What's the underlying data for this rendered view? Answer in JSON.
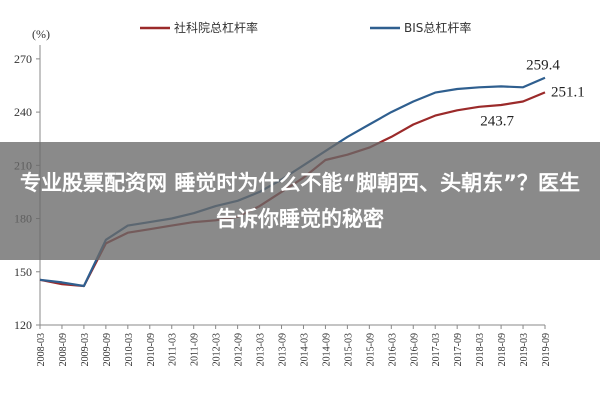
{
  "chart_data": {
    "type": "line",
    "yunit": "(%)",
    "ylim": [
      120,
      275
    ],
    "yticks": [
      120,
      150,
      180,
      210,
      240,
      270
    ],
    "x": [
      "2008-03",
      "2008-09",
      "2009-03",
      "2009-09",
      "2010-03",
      "2010-09",
      "2011-03",
      "2011-09",
      "2012-03",
      "2012-09",
      "2013-03",
      "2013-09",
      "2014-03",
      "2014-09",
      "2015-03",
      "2015-09",
      "2016-03",
      "2016-09",
      "2017-03",
      "2017-09",
      "2018-03",
      "2018-09",
      "2019-03",
      "2019-09"
    ],
    "grid": false,
    "legend_position": "top",
    "series": [
      {
        "name": "社科院总杠杆率",
        "color": "#9b2a2a",
        "values": [
          145.5,
          143,
          142,
          166,
          172,
          174,
          176,
          178,
          179,
          181,
          187,
          195,
          203,
          213,
          216,
          220,
          226,
          233,
          238,
          241,
          243,
          244,
          246,
          251.1
        ]
      },
      {
        "name": "BIS总杠杆率",
        "color": "#2f5f8f",
        "values": [
          145.5,
          144,
          142,
          168,
          176,
          178,
          180,
          183,
          187,
          190,
          195,
          202,
          210,
          218,
          226,
          233,
          240,
          246,
          251,
          253,
          254,
          254.5,
          254,
          259.4
        ]
      }
    ],
    "annotations": [
      {
        "text": "259.4",
        "x": "2019-09",
        "y": 259.4
      },
      {
        "text": "251.1",
        "x": "2019-09",
        "y": 251.1
      },
      {
        "text": "243.7",
        "x": "2018-09",
        "y": 243.7
      }
    ]
  },
  "banner": {
    "title": "专业股票配资网 睡觉时为什么不能“脚朝西、头朝东”？医生告诉你睡觉的秘密"
  }
}
